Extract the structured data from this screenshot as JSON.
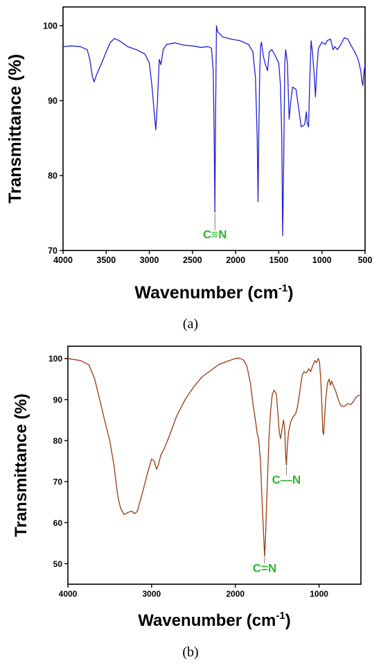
{
  "chart_data": [
    {
      "panel_label": "(a)",
      "type": "line",
      "xlabel": "Wavenumber (cm",
      "xlabel_sup": "-1",
      "xlabel_close": ")",
      "ylabel": "Transmittance (%)",
      "xlim": [
        4000,
        500
      ],
      "ylim": [
        70,
        102.5
      ],
      "x_ticks": [
        4000,
        3500,
        3000,
        2500,
        2000,
        1500,
        1000,
        500
      ],
      "y_ticks": [
        70,
        80,
        90,
        100
      ],
      "grid": false,
      "line_color": "#1f1fd0",
      "annotation_color": "#2fb52f",
      "annotations": [
        {
          "text": "C≡N",
          "x": 2240,
          "y": 75,
          "label_y": 71.6
        }
      ],
      "series": [
        {
          "values": [
            [
              4000,
              97.2
            ],
            [
              3900,
              97.3
            ],
            [
              3800,
              97.2
            ],
            [
              3720,
              96.8
            ],
            [
              3690,
              95.5
            ],
            [
              3660,
              93.2
            ],
            [
              3640,
              92.5
            ],
            [
              3610,
              93.5
            ],
            [
              3560,
              94.8
            ],
            [
              3500,
              96.5
            ],
            [
              3450,
              97.8
            ],
            [
              3400,
              98.3
            ],
            [
              3350,
              98.0
            ],
            [
              3250,
              97.2
            ],
            [
              3150,
              96.8
            ],
            [
              3050,
              96.2
            ],
            [
              3000,
              95.0
            ],
            [
              2970,
              92.0
            ],
            [
              2940,
              88.0
            ],
            [
              2925,
              86.1
            ],
            [
              2905,
              90.0
            ],
            [
              2885,
              95.5
            ],
            [
              2865,
              94.8
            ],
            [
              2840,
              96.8
            ],
            [
              2800,
              97.5
            ],
            [
              2700,
              97.7
            ],
            [
              2600,
              97.4
            ],
            [
              2500,
              97.3
            ],
            [
              2400,
              97.1
            ],
            [
              2320,
              97.2
            ],
            [
              2280,
              97.0
            ],
            [
              2260,
              94.0
            ],
            [
              2248,
              85.0
            ],
            [
              2240,
              75.1
            ],
            [
              2232,
              88.0
            ],
            [
              2222,
              100.0
            ],
            [
              2210,
              99.2
            ],
            [
              2150,
              98.5
            ],
            [
              2050,
              98.2
            ],
            [
              1950,
              98.0
            ],
            [
              1850,
              97.5
            ],
            [
              1800,
              96.5
            ],
            [
              1770,
              93.0
            ],
            [
              1750,
              85.0
            ],
            [
              1740,
              76.5
            ],
            [
              1732,
              85.0
            ],
            [
              1720,
              94.0
            ],
            [
              1710,
              97.4
            ],
            [
              1700,
              97.8
            ],
            [
              1680,
              96.0
            ],
            [
              1660,
              95.0
            ],
            [
              1630,
              94.0
            ],
            [
              1610,
              96.5
            ],
            [
              1580,
              96.8
            ],
            [
              1540,
              96.0
            ],
            [
              1500,
              95.0
            ],
            [
              1480,
              92.0
            ],
            [
              1465,
              85.0
            ],
            [
              1455,
              72.0
            ],
            [
              1445,
              80.0
            ],
            [
              1430,
              95.0
            ],
            [
              1420,
              96.8
            ],
            [
              1400,
              95.0
            ],
            [
              1380,
              87.5
            ],
            [
              1360,
              90.0
            ],
            [
              1340,
              91.8
            ],
            [
              1300,
              91.5
            ],
            [
              1270,
              89.0
            ],
            [
              1240,
              86.5
            ],
            [
              1200,
              86.8
            ],
            [
              1180,
              88.5
            ],
            [
              1170,
              87.0
            ],
            [
              1155,
              86.5
            ],
            [
              1140,
              93.0
            ],
            [
              1125,
              98.0
            ],
            [
              1110,
              96.5
            ],
            [
              1090,
              93.5
            ],
            [
              1075,
              90.5
            ],
            [
              1060,
              94.0
            ],
            [
              1040,
              97.0
            ],
            [
              1000,
              97.8
            ],
            [
              960,
              97.5
            ],
            [
              940,
              98.0
            ],
            [
              900,
              98.2
            ],
            [
              870,
              96.8
            ],
            [
              850,
              97.2
            ],
            [
              820,
              96.8
            ],
            [
              780,
              97.5
            ],
            [
              740,
              98.4
            ],
            [
              700,
              98.2
            ],
            [
              660,
              97.3
            ],
            [
              620,
              96.5
            ],
            [
              580,
              95.5
            ],
            [
              550,
              94.0
            ],
            [
              535,
              92.5
            ],
            [
              525,
              92.0
            ],
            [
              515,
              93.5
            ],
            [
              505,
              94.5
            ],
            [
              500,
              94.8
            ]
          ]
        }
      ]
    },
    {
      "panel_label": "(b)",
      "type": "line",
      "xlabel": "Wavenumber (cm",
      "xlabel_sup": "-1",
      "xlabel_close": ")",
      "ylabel": "Transmittance (%)",
      "xlim": [
        4000,
        500
      ],
      "ylim": [
        45,
        103
      ],
      "x_ticks": [
        4000,
        3000,
        2000,
        1000
      ],
      "y_ticks": [
        50,
        60,
        70,
        80,
        90,
        100
      ],
      "grid": false,
      "line_color": "#9a3a10",
      "annotation_color": "#2fb52f",
      "annotations": [
        {
          "text": "C=N",
          "x": 1650,
          "y": 51.7,
          "label_y": 48.0
        },
        {
          "text": "C—N",
          "x": 1390,
          "y": 73.8,
          "label_y": 69.5
        }
      ],
      "series": [
        {
          "values": [
            [
              4000,
              100.0
            ],
            [
              3850,
              99.5
            ],
            [
              3750,
              98.5
            ],
            [
              3680,
              95.0
            ],
            [
              3620,
              90.0
            ],
            [
              3550,
              84.0
            ],
            [
              3500,
              80.0
            ],
            [
              3450,
              74.0
            ],
            [
              3420,
              69.0
            ],
            [
              3400,
              66.0
            ],
            [
              3370,
              63.5
            ],
            [
              3330,
              62.0
            ],
            [
              3280,
              62.5
            ],
            [
              3240,
              62.8
            ],
            [
              3200,
              62.2
            ],
            [
              3170,
              62.8
            ],
            [
              3140,
              65.0
            ],
            [
              3100,
              68.0
            ],
            [
              3050,
              72.0
            ],
            [
              3000,
              75.5
            ],
            [
              2970,
              75.0
            ],
            [
              2940,
              73.0
            ],
            [
              2920,
              74.0
            ],
            [
              2890,
              76.5
            ],
            [
              2850,
              78.0
            ],
            [
              2800,
              80.5
            ],
            [
              2700,
              86.0
            ],
            [
              2600,
              90.0
            ],
            [
              2500,
              93.0
            ],
            [
              2400,
              95.5
            ],
            [
              2300,
              97.0
            ],
            [
              2200,
              98.5
            ],
            [
              2100,
              99.3
            ],
            [
              2000,
              100.0
            ],
            [
              1950,
              100.1
            ],
            [
              1900,
              99.6
            ],
            [
              1860,
              98.0
            ],
            [
              1820,
              94.0
            ],
            [
              1790,
              89.0
            ],
            [
              1760,
              85.0
            ],
            [
              1740,
              82.0
            ],
            [
              1720,
              80.0
            ],
            [
              1700,
              75.0
            ],
            [
              1680,
              65.0
            ],
            [
              1660,
              56.0
            ],
            [
              1650,
              51.8
            ],
            [
              1640,
              56.0
            ],
            [
              1620,
              68.0
            ],
            [
              1600,
              80.0
            ],
            [
              1580,
              87.0
            ],
            [
              1560,
              91.0
            ],
            [
              1540,
              92.3
            ],
            [
              1510,
              91.5
            ],
            [
              1490,
              86.0
            ],
            [
              1475,
              82.0
            ],
            [
              1460,
              80.5
            ],
            [
              1440,
              83.0
            ],
            [
              1425,
              85.0
            ],
            [
              1410,
              83.0
            ],
            [
              1400,
              77.0
            ],
            [
              1390,
              74.0
            ],
            [
              1380,
              78.0
            ],
            [
              1365,
              82.0
            ],
            [
              1340,
              84.5
            ],
            [
              1310,
              85.8
            ],
            [
              1280,
              86.5
            ],
            [
              1260,
              88.0
            ],
            [
              1240,
              90.5
            ],
            [
              1220,
              93.5
            ],
            [
              1200,
              96.0
            ],
            [
              1180,
              96.8
            ],
            [
              1150,
              96.5
            ],
            [
              1120,
              97.5
            ],
            [
              1100,
              96.8
            ],
            [
              1080,
              98.0
            ],
            [
              1050,
              99.5
            ],
            [
              1030,
              99.0
            ],
            [
              1010,
              100.0
            ],
            [
              995,
              99.2
            ],
            [
              980,
              95.0
            ],
            [
              965,
              88.0
            ],
            [
              955,
              82.0
            ],
            [
              945,
              81.5
            ],
            [
              935,
              85.0
            ],
            [
              920,
              90.0
            ],
            [
              900,
              94.0
            ],
            [
              880,
              95.0
            ],
            [
              865,
              93.5
            ],
            [
              850,
              94.5
            ],
            [
              830,
              93.5
            ],
            [
              800,
              92.0
            ],
            [
              770,
              90.0
            ],
            [
              740,
              88.5
            ],
            [
              700,
              88.3
            ],
            [
              660,
              89.0
            ],
            [
              620,
              88.8
            ],
            [
              590,
              89.5
            ],
            [
              560,
              90.5
            ],
            [
              530,
              91.0
            ],
            [
              500,
              91.0
            ]
          ]
        }
      ]
    }
  ]
}
